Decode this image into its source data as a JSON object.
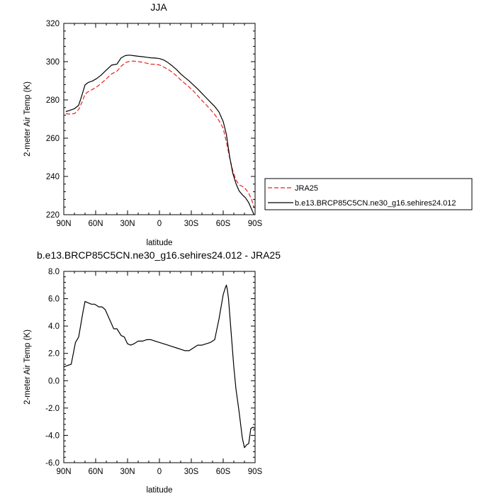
{
  "chart_data": [
    {
      "type": "line",
      "title": "JJA",
      "xlabel": "latitude",
      "ylabel": "2-meter Air Temp (K)",
      "xlim": [
        90,
        -90
      ],
      "ylim": [
        220,
        320
      ],
      "x_ticks": [
        90,
        60,
        30,
        0,
        -30,
        -60,
        -90
      ],
      "x_tick_labels": [
        "90N",
        "60N",
        "30N",
        "0",
        "30S",
        "60S",
        "90S"
      ],
      "y_ticks": [
        220,
        240,
        260,
        280,
        300,
        320
      ],
      "y_tick_labels": [
        "220",
        "240",
        "260",
        "280",
        "300",
        "320"
      ],
      "grid": false,
      "legend_position": "right",
      "series": [
        {
          "name": "JRA25",
          "color": "#e8211d",
          "dash": "dashed",
          "x": [
            88,
            85,
            80,
            76,
            73,
            70,
            67,
            63,
            59,
            55,
            50,
            45,
            40,
            36,
            32,
            28,
            24,
            20,
            16,
            12,
            8,
            4,
            0,
            -4,
            -8,
            -12,
            -16,
            -20,
            -24,
            -28,
            -32,
            -36,
            -40,
            -44,
            -48,
            -52,
            -56,
            -60,
            -63,
            -66,
            -69,
            -72,
            -75,
            -78,
            -81,
            -84,
            -87,
            -89
          ],
          "values": [
            272.8,
            272.6,
            272.8,
            275,
            278.6,
            283,
            284.3,
            285.5,
            286.8,
            288.5,
            291,
            293.6,
            295,
            297.6,
            299.5,
            300.2,
            300.3,
            300,
            299.7,
            299.2,
            298.7,
            298.6,
            298.3,
            297.2,
            296,
            294.5,
            292.6,
            290.5,
            288.6,
            286.7,
            284.6,
            282.2,
            279.7,
            277.4,
            275,
            272.4,
            269.2,
            265.2,
            258,
            250,
            243,
            238.2,
            235.6,
            234.8,
            233.5,
            231.3,
            227.5,
            223.5
          ]
        },
        {
          "name": "b.e13.BRCP85C5CN.ne30_g16.sehires24.012",
          "color": "#000000",
          "dash": "solid",
          "x": [
            88,
            85,
            80,
            76,
            73,
            70,
            67,
            63,
            59,
            55,
            50,
            45,
            40,
            36,
            32,
            28,
            24,
            20,
            16,
            12,
            8,
            4,
            0,
            -4,
            -8,
            -12,
            -16,
            -20,
            -24,
            -28,
            -32,
            -36,
            -40,
            -44,
            -48,
            -52,
            -56,
            -60,
            -63,
            -66,
            -69,
            -72,
            -75,
            -78,
            -81,
            -84,
            -87,
            -89
          ],
          "values": [
            273.9,
            274.4,
            275.4,
            277.2,
            282.3,
            287.8,
            289.1,
            289.9,
            291.2,
            292.9,
            295.6,
            298.2,
            298.7,
            302,
            303.2,
            303.4,
            303.1,
            302.8,
            302.6,
            302.3,
            302,
            301.9,
            301.6,
            300.9,
            299.5,
            297.8,
            295.9,
            293.6,
            291.7,
            289.9,
            287.8,
            285.7,
            283.4,
            281.1,
            278.8,
            276.6,
            273.7,
            268.7,
            262,
            250.5,
            241.7,
            236.3,
            232.4,
            230.4,
            228.8,
            226.3,
            222.5,
            220
          ]
        }
      ]
    },
    {
      "type": "line",
      "title": "b.e13.BRCP85C5CN.ne30_g16.sehires24.012 - JRA25",
      "xlabel": "latitude",
      "ylabel": "2-meter Air Temp (K)",
      "xlim": [
        90,
        -90
      ],
      "ylim": [
        -6,
        8
      ],
      "x_ticks": [
        90,
        60,
        30,
        0,
        -30,
        -60,
        -90
      ],
      "x_tick_labels": [
        "90N",
        "60N",
        "30N",
        "0",
        "30S",
        "60S",
        "90S"
      ],
      "y_ticks": [
        -6,
        -4,
        -2,
        0,
        2,
        4,
        6,
        8
      ],
      "y_tick_labels": [
        "-6.0",
        "-4.0",
        "-2.0",
        "0.0",
        "2.0",
        "4.0",
        "6.0",
        "8.0"
      ],
      "grid": false,
      "series": [
        {
          "color": "#000000",
          "dash": "solid",
          "x": [
            90,
            87,
            83,
            79,
            76,
            72,
            70,
            67,
            64,
            61,
            57,
            54,
            51,
            47,
            43,
            40,
            36,
            33,
            30,
            27,
            24,
            20,
            16,
            12,
            8,
            4,
            0,
            -4,
            -8,
            -12,
            -16,
            -20,
            -24,
            -28,
            -32,
            -36,
            -40,
            -44,
            -48,
            -52,
            -56,
            -58,
            -60,
            -62,
            -63,
            -64,
            -65,
            -66,
            -68,
            -70,
            -72,
            -75,
            -78,
            -80,
            -82,
            -84,
            -86,
            -88,
            -90
          ],
          "values": [
            1.0,
            1.1,
            1.2,
            2.8,
            3.2,
            5.0,
            5.8,
            5.7,
            5.6,
            5.6,
            5.4,
            5.4,
            5.2,
            4.5,
            3.8,
            3.8,
            3.3,
            3.2,
            2.7,
            2.6,
            2.7,
            2.9,
            2.9,
            3.0,
            3.0,
            2.9,
            2.8,
            2.7,
            2.6,
            2.5,
            2.4,
            2.3,
            2.2,
            2.2,
            2.4,
            2.6,
            2.6,
            2.7,
            2.8,
            3.0,
            4.5,
            5.4,
            6.3,
            6.8,
            7.0,
            6.6,
            6.0,
            5.0,
            3.0,
            1.0,
            -0.6,
            -2.3,
            -4.2,
            -4.9,
            -4.7,
            -4.6,
            -3.5,
            -3.4,
            -3.5
          ]
        }
      ]
    }
  ]
}
